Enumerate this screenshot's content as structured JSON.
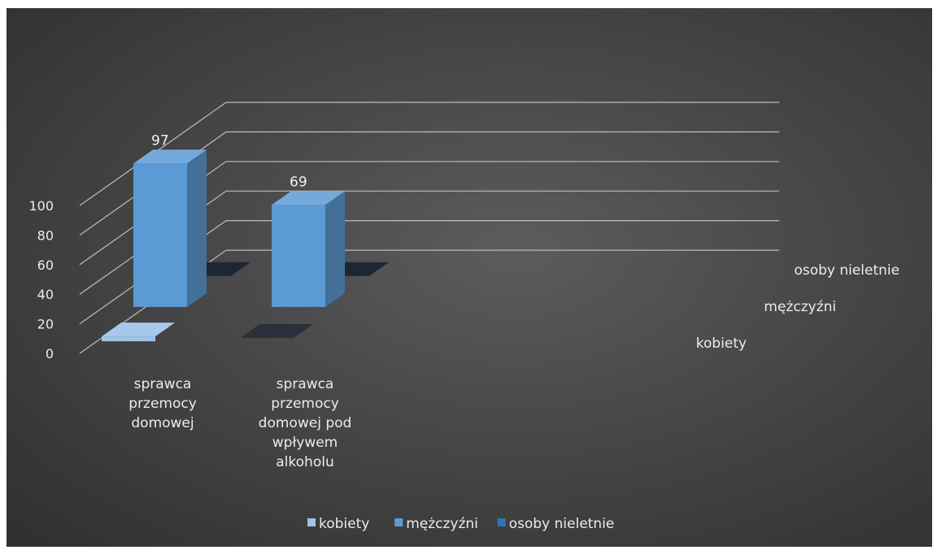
{
  "chart_data": {
    "type": "bar",
    "subtype": "3d-column",
    "title": "",
    "categories": [
      "sprawca przemocy domowej",
      "sprawca przemocy domowej pod wpływem alkoholu"
    ],
    "categories_lines": [
      [
        "sprawca",
        "przemocy",
        "domowej"
      ],
      [
        "sprawca",
        "przemocy",
        "domowej pod",
        "wpływem",
        "alkoholu"
      ]
    ],
    "series": [
      {
        "name": "kobiety",
        "values": [
          1,
          0
        ],
        "color": "#9dc3e6"
      },
      {
        "name": "mężczyźni",
        "values": [
          97,
          69
        ],
        "color": "#5b9bd5"
      },
      {
        "name": "osoby nieletnie",
        "values": [
          0,
          0
        ],
        "color": "#2e75b6"
      }
    ],
    "data_labels": [
      {
        "series": "mężczyźni",
        "category_index": 0,
        "text": "97"
      },
      {
        "series": "mężczyźni",
        "category_index": 1,
        "text": "69"
      }
    ],
    "depth_labels": [
      "osoby nieletnie",
      "mężczyźni",
      "kobiety"
    ],
    "y_ticks": [
      "0",
      "20",
      "40",
      "60",
      "80",
      "100"
    ],
    "ylim": [
      0,
      100
    ],
    "grid": true,
    "legend_position": "bottom",
    "background": "#404040"
  }
}
